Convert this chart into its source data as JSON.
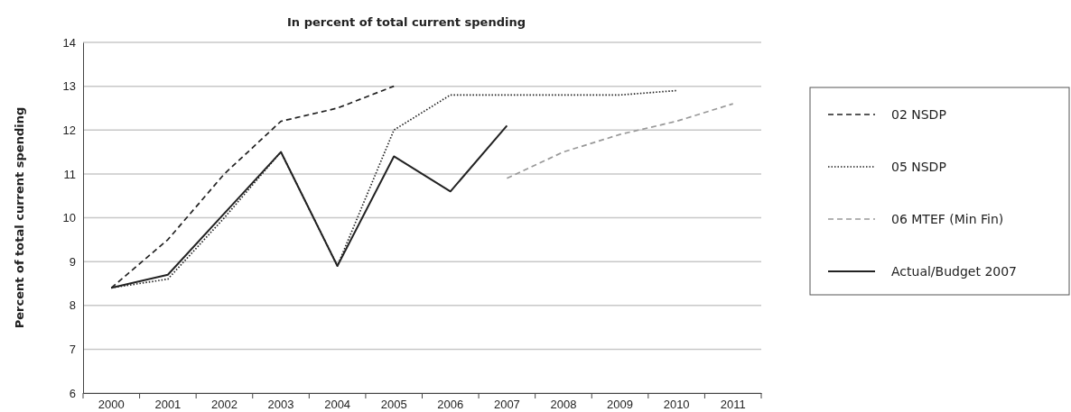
{
  "chart_data": {
    "type": "line",
    "title": "In percent of total current spending",
    "ylabel": "Percent of total current spending",
    "categories": [
      "2000",
      "2001",
      "2002",
      "2003",
      "2004",
      "2005",
      "2006",
      "2007",
      "2008",
      "2009",
      "2010",
      "2011"
    ],
    "series": [
      {
        "name": "02 NSDP",
        "color": "#222222",
        "line_style": "dashed",
        "values": [
          8.4,
          9.5,
          11.0,
          12.2,
          12.5,
          13.0,
          null,
          null,
          null,
          null,
          null,
          null
        ]
      },
      {
        "name": "05 NSDP",
        "color": "#222222",
        "line_style": "dotted",
        "values": [
          8.4,
          8.6,
          10.0,
          11.5,
          8.9,
          12.0,
          12.8,
          12.8,
          12.8,
          12.8,
          12.9,
          null
        ]
      },
      {
        "name": "06 MTEF (Min Fin)",
        "color": "#999999",
        "line_style": "dashed",
        "values": [
          null,
          null,
          null,
          null,
          null,
          null,
          null,
          10.9,
          11.5,
          11.9,
          12.2,
          12.6
        ]
      },
      {
        "name": "Actual/Budget 2007",
        "color": "#222222",
        "line_style": "solid",
        "values": [
          8.4,
          8.7,
          10.1,
          11.5,
          8.9,
          11.4,
          10.6,
          12.1,
          null,
          null,
          null,
          null
        ]
      }
    ],
    "ylim": [
      6,
      14
    ],
    "yticks": [
      6,
      7,
      8,
      9,
      10,
      11,
      12,
      13,
      14
    ],
    "grid": "y",
    "legend": "right",
    "marker": "none"
  }
}
